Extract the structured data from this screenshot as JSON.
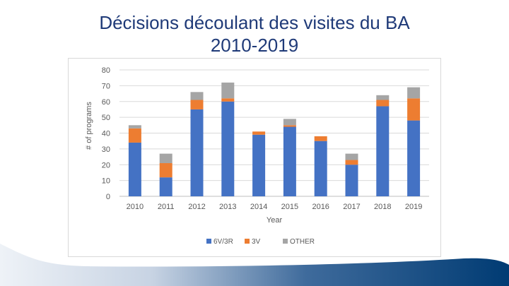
{
  "slide": {
    "title_line1": "Décisions découlant des visites du BA",
    "title_line2": "2010-2019"
  },
  "colors": {
    "title": "#1f3a78",
    "series_6v3r": "#4472c4",
    "series_3v": "#ed7d31",
    "series_other": "#a5a5a5",
    "footer_dark": "#003b73"
  },
  "chart_data": {
    "type": "bar",
    "stacked": true,
    "categories": [
      "2010",
      "2011",
      "2012",
      "2013",
      "2014",
      "2015",
      "2016",
      "2017",
      "2018",
      "2019"
    ],
    "series": [
      {
        "name": "6V/3R",
        "values": [
          34,
          12,
          55,
          60,
          39,
          44,
          35,
          20,
          57,
          48
        ]
      },
      {
        "name": "3V",
        "values": [
          9,
          9,
          6,
          2,
          2,
          1,
          3,
          3,
          4,
          14
        ]
      },
      {
        "name": "OTHER",
        "values": [
          2,
          6,
          5,
          10,
          0,
          4,
          0,
          4,
          3,
          7
        ]
      }
    ],
    "title": "",
    "xlabel": "Year",
    "ylabel": "# of programs",
    "ylim": [
      0,
      80
    ],
    "yticks": [
      "0",
      "10",
      "20",
      "30",
      "40",
      "50",
      "60",
      "70",
      "80"
    ],
    "grid": true,
    "legend": "bottom"
  }
}
